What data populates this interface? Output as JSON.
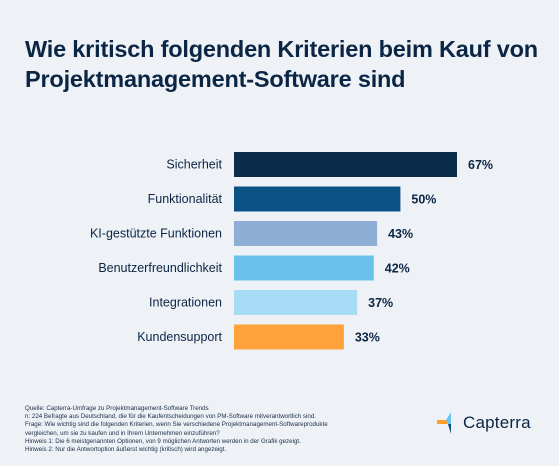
{
  "chart_data": {
    "type": "bar",
    "orientation": "horizontal",
    "title": "Wie kritisch folgenden Kriterien beim Kauf von Projektmanagement-Software sind",
    "categories": [
      "Sicherheit",
      "Funktionalität",
      "KI-gestützte Funktionen",
      "Benutzerfreundlichkeit",
      "Integrationen",
      "Kundensupport"
    ],
    "values": [
      67,
      50,
      43,
      42,
      37,
      33
    ],
    "value_labels": [
      "67%",
      "50%",
      "43%",
      "42%",
      "37%",
      "33%"
    ],
    "unit": "%",
    "xlim": [
      0,
      100
    ],
    "grid": false,
    "colors": [
      "#0b2d4a",
      "#0a5286",
      "#8eaed6",
      "#6cc0ec",
      "#a7dcf6",
      "#ffa23a"
    ]
  },
  "footer": {
    "lines": [
      "Quelle: Capterra-Umfrage zu Projektmanagement-Software Trends",
      "n: 224 Befragte aus Deutschland, die für die Kaufentscheidungen von PM-Software mitverantwortlich sind.",
      "Frage: Wie wichtig sind die folgenden Kriterien, wenn Sie verschiedene Projektmanagement-Softwareprodukte",
      "vergleichen, um sie zu kaufen und in Ihrem Unternehmen einzuführen?",
      "Hinweis 1: Die 6 meistgenannten Optionen, von 9 möglichen Antworten werden in der Grafik gezeigt.",
      "Hinweis 2: Nur die Antwortoption äußerst wichtig (kritisch) wird angezeigt."
    ]
  },
  "brand": {
    "name": "Capterra",
    "icon": "capterra-logo-icon",
    "colors": [
      "#ff9d28",
      "#68c5ed",
      "#044d80",
      "#e54747"
    ]
  }
}
